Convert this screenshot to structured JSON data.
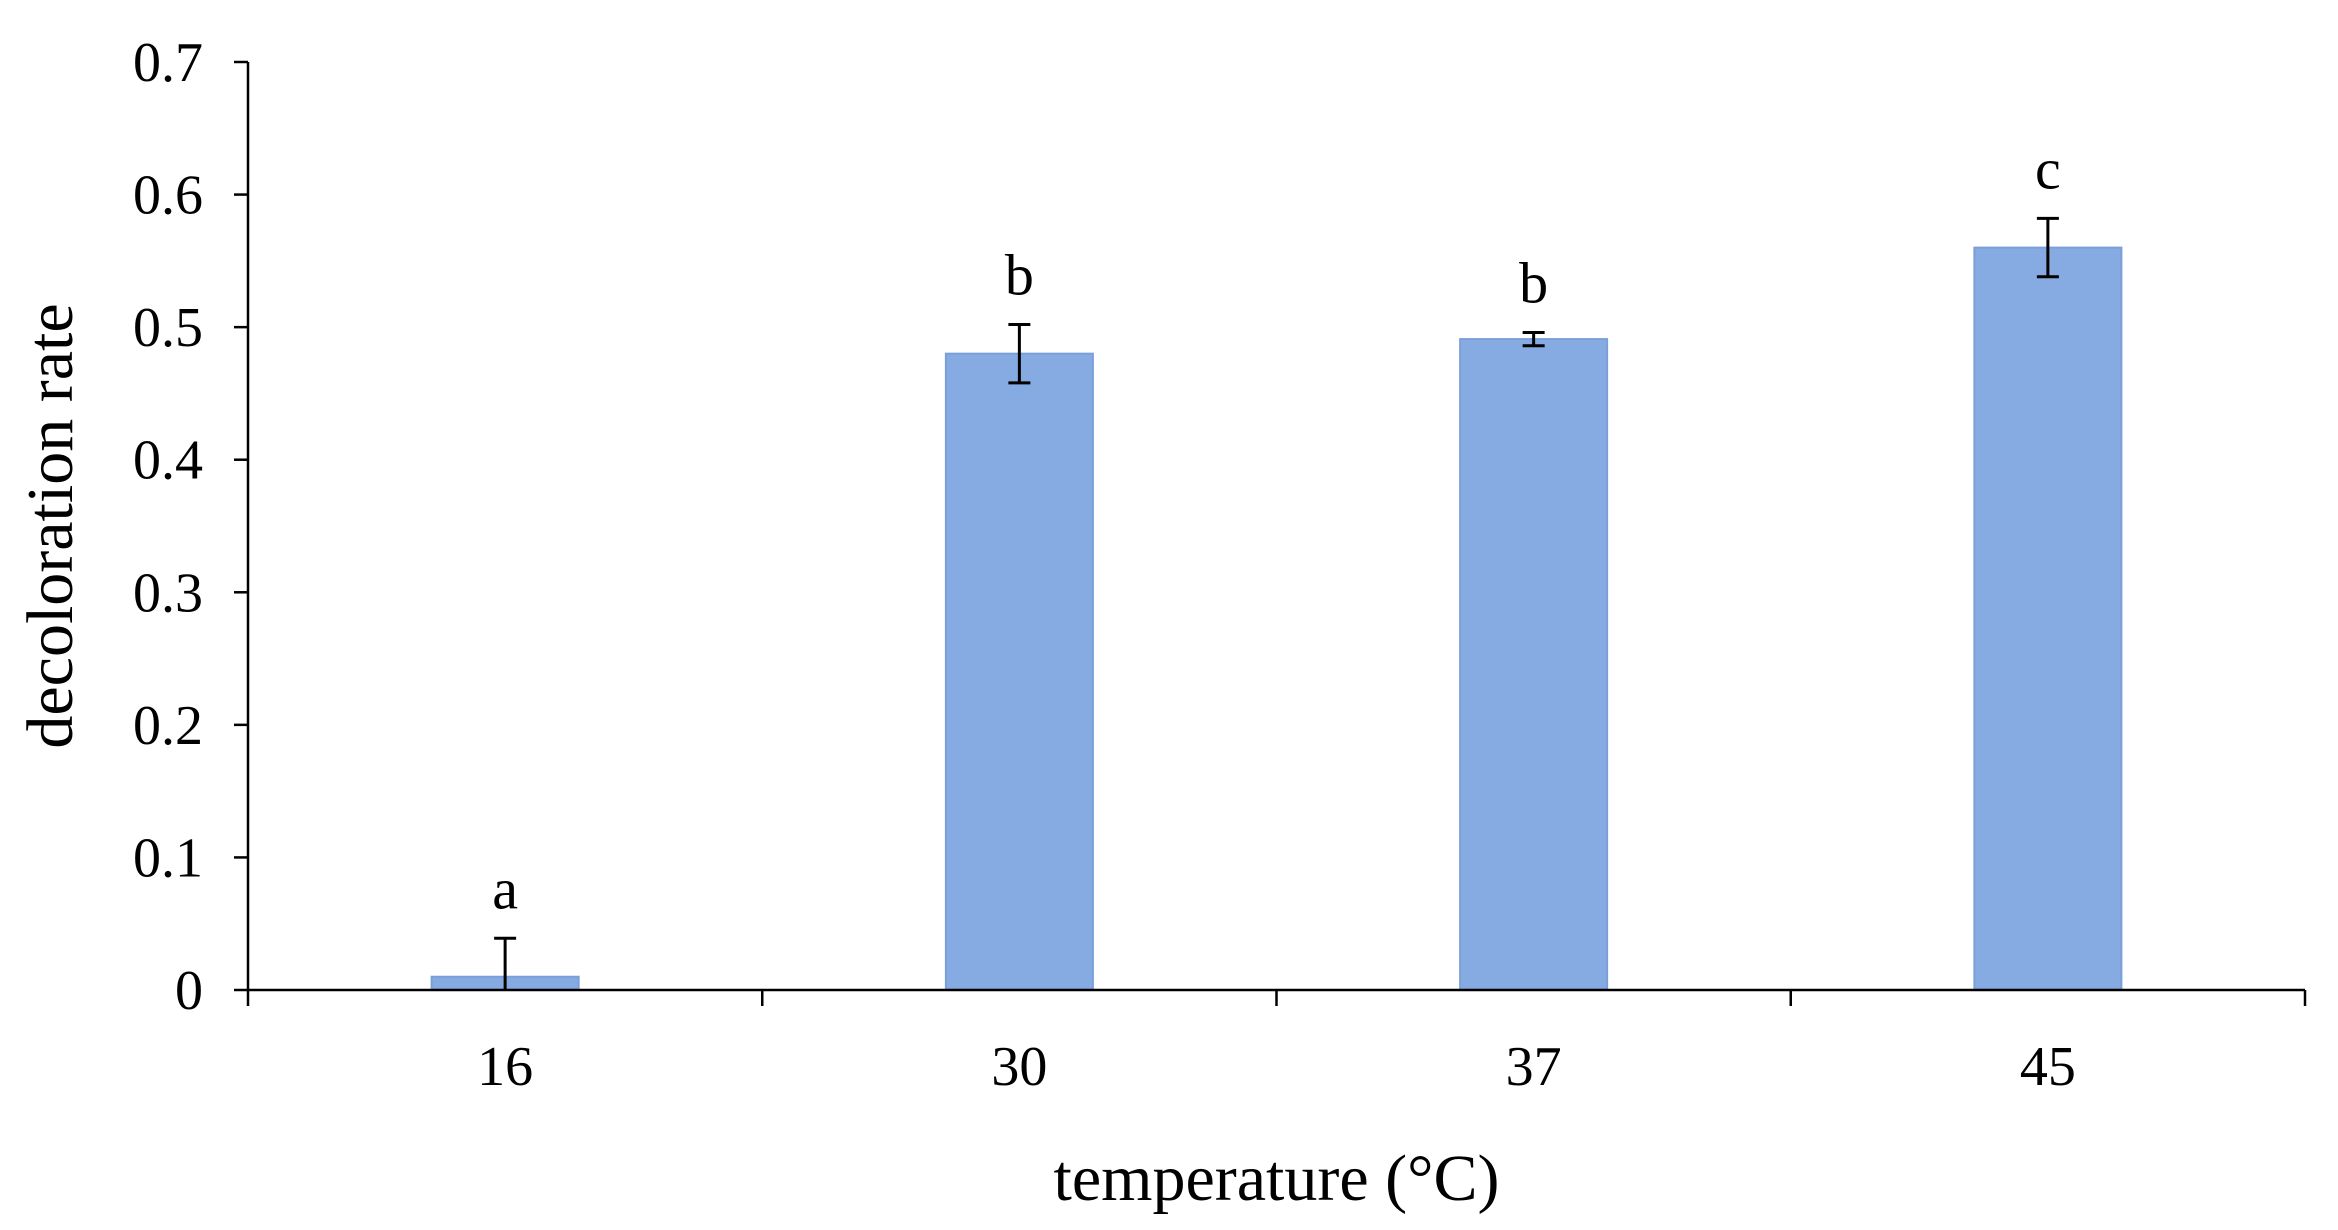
{
  "chart_data": {
    "type": "bar",
    "title": "",
    "xlabel": "temperature (°C)",
    "ylabel": "decoloration rate",
    "categories": [
      "16",
      "30",
      "37",
      "45"
    ],
    "values": [
      0.01,
      0.48,
      0.491,
      0.56
    ],
    "errors": [
      0.029,
      0.022,
      0.005,
      0.022
    ],
    "significance_labels": [
      "a",
      "b",
      "b",
      "c"
    ],
    "ylim": [
      0,
      0.7
    ],
    "yticks": [
      "0",
      "0.1",
      "0.2",
      "0.3",
      "0.4",
      "0.5",
      "0.6",
      "0.7"
    ],
    "grid": false,
    "legend": "none",
    "bar_color": "#86ABE2",
    "bar_edge_color": "#7A9FD9"
  }
}
